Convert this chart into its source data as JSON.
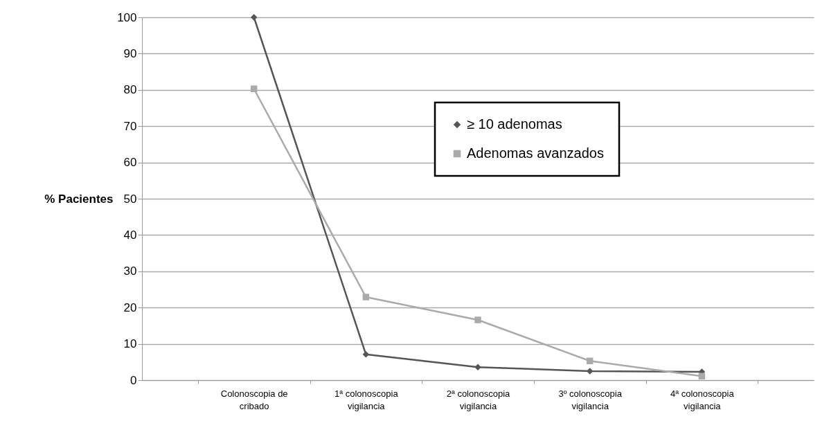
{
  "chart_data": {
    "type": "line",
    "ylabel": "% Pacientes",
    "categories": [
      "Colonoscopia de cribado",
      "1ª colonoscopia vigilancia",
      "2ª colonoscopia vigilancia",
      "3º colonoscopia vigilancia",
      "4ª colonoscopia vigilancia"
    ],
    "series": [
      {
        "name": "≥ 10 adenomas",
        "color": "#555555",
        "marker": "diamond",
        "values": [
          100,
          7.1,
          3.6,
          2.5,
          2.3
        ]
      },
      {
        "name": "Adenomas avanzados",
        "color": "#aaaaaa",
        "marker": "square",
        "values": [
          80.3,
          22.9,
          16.6,
          5.3,
          1.1
        ]
      }
    ],
    "ylim": [
      0,
      100
    ],
    "yticks": [
      0,
      10,
      20,
      30,
      40,
      50,
      60,
      70,
      80,
      90,
      100
    ],
    "grid": "y",
    "legend": "top right",
    "line_style": "solid"
  }
}
